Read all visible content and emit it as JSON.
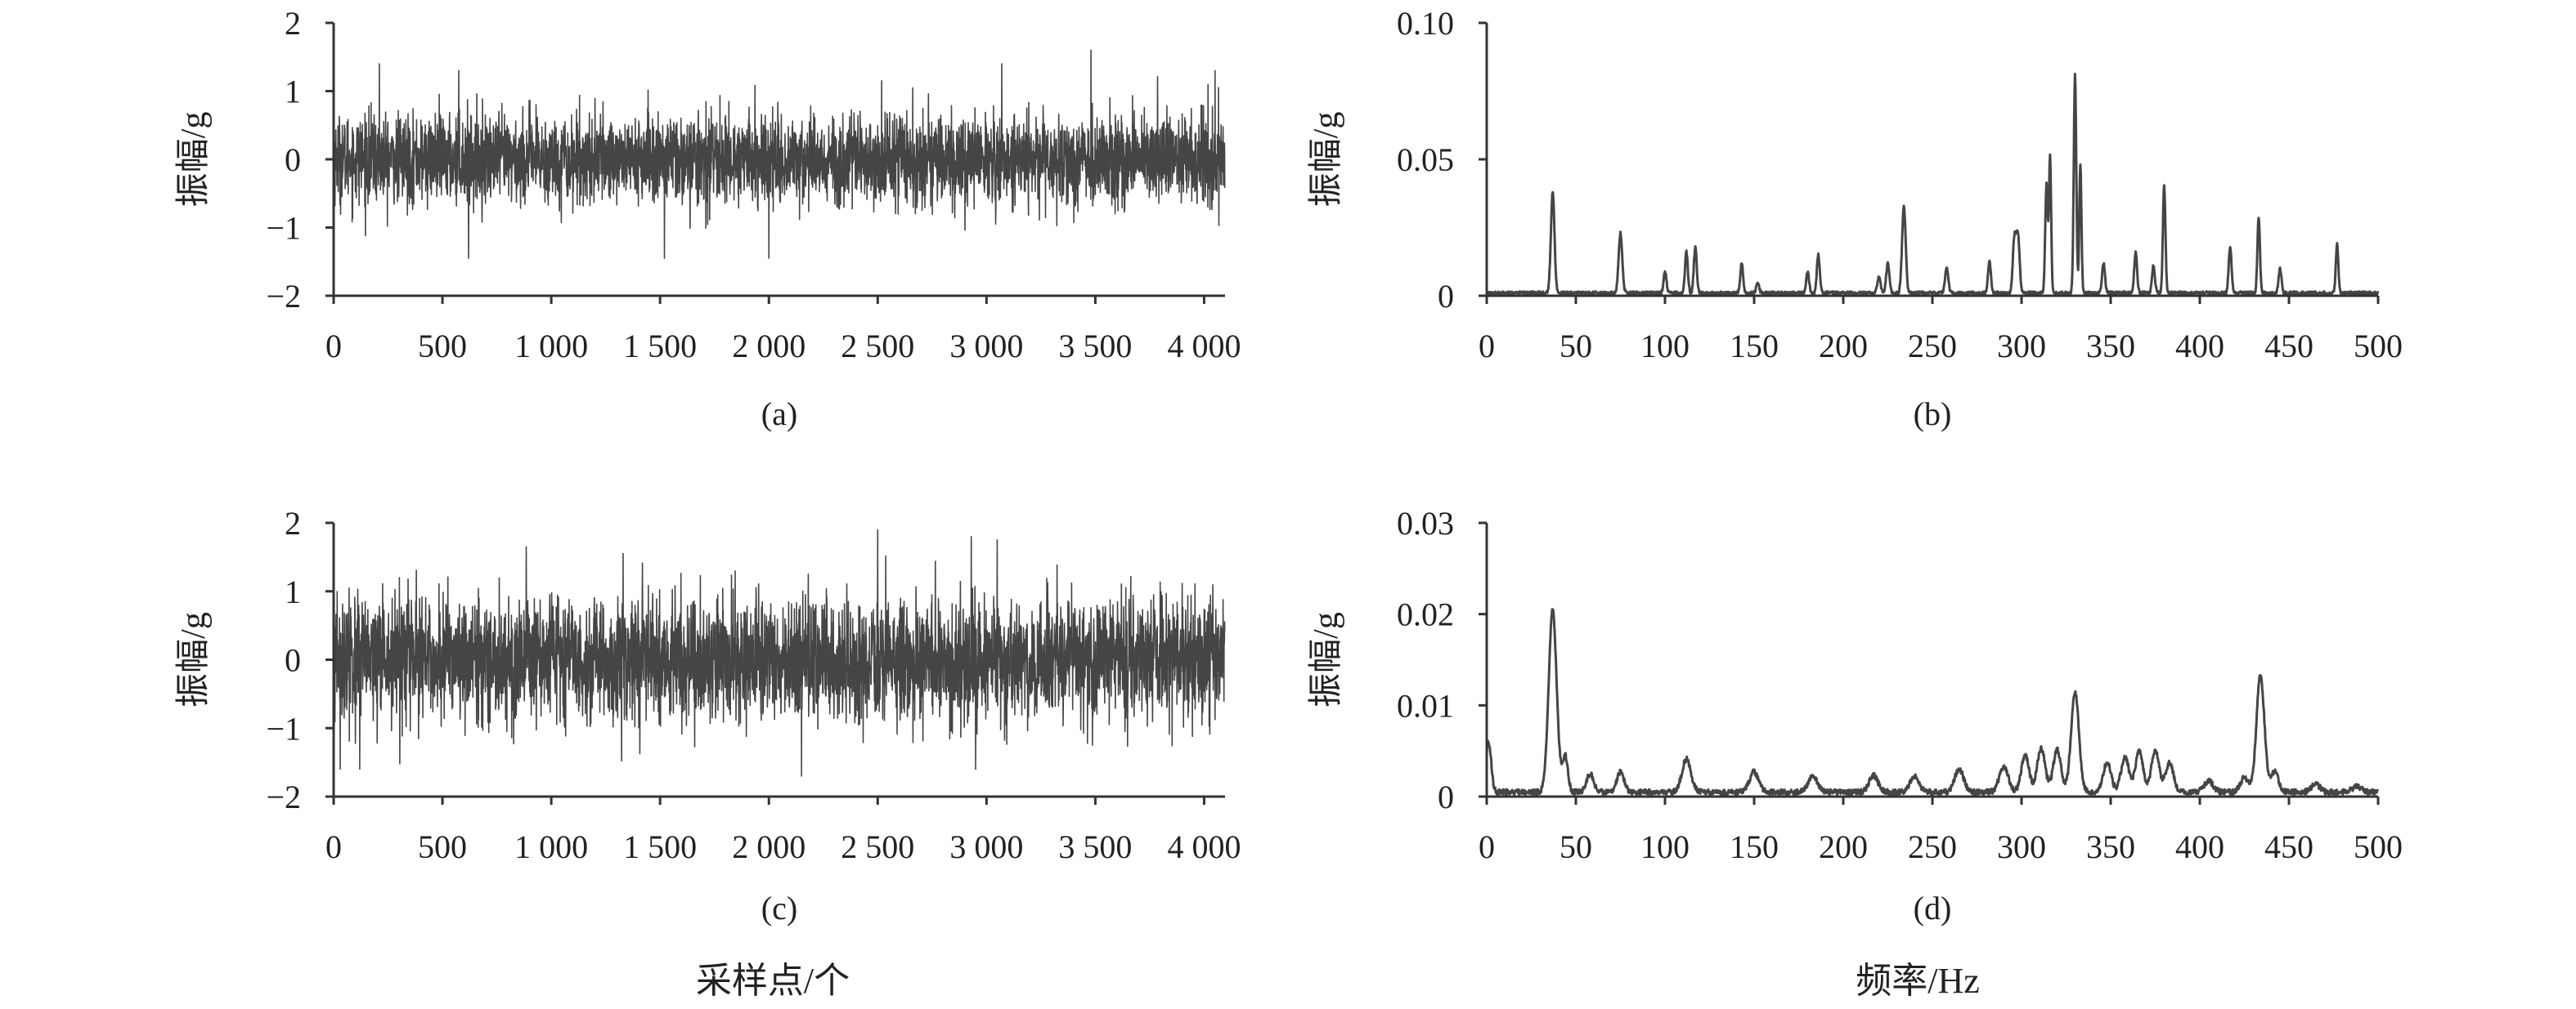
{
  "chart_data": [
    {
      "id": "a",
      "type": "line",
      "caption": "(a)",
      "ylabel": "振幅/g",
      "xlabel": "",
      "xlim": [
        0,
        4096
      ],
      "ylim": [
        -2,
        2
      ],
      "xticks": [
        0,
        500,
        1000,
        1500,
        2000,
        2500,
        3000,
        3500,
        4000
      ],
      "xtick_labels": [
        "0",
        "500",
        "1 000",
        "1 500",
        "2 000",
        "2 500",
        "3 000",
        "3 500",
        "4 000"
      ],
      "yticks": [
        -2,
        -1,
        0,
        1,
        2
      ],
      "ytick_labels": [
        "−2",
        "−1",
        "0",
        "1",
        "2"
      ],
      "signal": {
        "kind": "noise",
        "n": 4096,
        "sigma": 0.32,
        "clip": 1.6
      },
      "annotated_peaks": [
        {
          "x": 210,
          "y": 1.4
        },
        {
          "x": 575,
          "y": 1.3
        },
        {
          "x": 620,
          "y": -1.45
        },
        {
          "x": 1520,
          "y": -1.45
        },
        {
          "x": 2000,
          "y": -1.45
        },
        {
          "x": 3070,
          "y": 1.4
        },
        {
          "x": 3480,
          "y": 1.6
        },
        {
          "x": 4050,
          "y": 1.3
        }
      ]
    },
    {
      "id": "b",
      "type": "line",
      "caption": "(b)",
      "ylabel": "振幅/g",
      "xlabel": "",
      "xlim": [
        0,
        500
      ],
      "ylim": [
        0,
        0.1
      ],
      "xticks": [
        0,
        50,
        100,
        150,
        200,
        250,
        300,
        350,
        400,
        450,
        500
      ],
      "xtick_labels": [
        "0",
        "50",
        "100",
        "150",
        "200",
        "250",
        "300",
        "350",
        "400",
        "450",
        "500"
      ],
      "yticks": [
        0,
        0.05,
        0.1
      ],
      "ytick_labels": [
        "0",
        "0.05",
        "0.10"
      ],
      "baseline": 0.001,
      "peaks": [
        {
          "x": 37,
          "y": 0.037,
          "w": 1.0
        },
        {
          "x": 75,
          "y": 0.022,
          "w": 1.0
        },
        {
          "x": 100,
          "y": 0.008,
          "w": 0.8
        },
        {
          "x": 112,
          "y": 0.015,
          "w": 0.8
        },
        {
          "x": 117,
          "y": 0.017,
          "w": 0.8
        },
        {
          "x": 143,
          "y": 0.011,
          "w": 0.8
        },
        {
          "x": 152,
          "y": 0.004,
          "w": 0.8
        },
        {
          "x": 180,
          "y": 0.008,
          "w": 0.8
        },
        {
          "x": 186,
          "y": 0.014,
          "w": 0.8
        },
        {
          "x": 220,
          "y": 0.006,
          "w": 0.9
        },
        {
          "x": 225,
          "y": 0.011,
          "w": 0.9
        },
        {
          "x": 234,
          "y": 0.032,
          "w": 1.0
        },
        {
          "x": 258,
          "y": 0.009,
          "w": 0.9
        },
        {
          "x": 282,
          "y": 0.012,
          "w": 0.8
        },
        {
          "x": 296,
          "y": 0.02,
          "w": 0.9
        },
        {
          "x": 298,
          "y": 0.021,
          "w": 0.9
        },
        {
          "x": 314,
          "y": 0.04,
          "w": 0.7
        },
        {
          "x": 316,
          "y": 0.05,
          "w": 0.6
        },
        {
          "x": 330,
          "y": 0.08,
          "w": 0.7
        },
        {
          "x": 333,
          "y": 0.047,
          "w": 0.6
        },
        {
          "x": 346,
          "y": 0.011,
          "w": 0.8
        },
        {
          "x": 364,
          "y": 0.015,
          "w": 0.8
        },
        {
          "x": 374,
          "y": 0.01,
          "w": 0.8
        },
        {
          "x": 380,
          "y": 0.04,
          "w": 0.7
        },
        {
          "x": 417,
          "y": 0.017,
          "w": 0.8
        },
        {
          "x": 433,
          "y": 0.028,
          "w": 0.7
        },
        {
          "x": 445,
          "y": 0.009,
          "w": 0.8
        },
        {
          "x": 477,
          "y": 0.018,
          "w": 0.7
        }
      ]
    },
    {
      "id": "c",
      "type": "line",
      "caption": "(c)",
      "ylabel": "振幅/g",
      "xlabel": "",
      "xlim": [
        0,
        4096
      ],
      "ylim": [
        -2,
        2
      ],
      "xticks": [
        0,
        500,
        1000,
        1500,
        2000,
        2500,
        3000,
        3500,
        4000
      ],
      "xtick_labels": [
        "0",
        "500",
        "1 000",
        "1 500",
        "2 000",
        "2 500",
        "3 000",
        "3 500",
        "4 000"
      ],
      "yticks": [
        -2,
        -1,
        0,
        1,
        2
      ],
      "ytick_labels": [
        "−2",
        "−1",
        "0",
        "1",
        "2"
      ],
      "signal": {
        "kind": "noise",
        "n": 4096,
        "sigma": 0.45,
        "clip": 1.8
      },
      "annotated_peaks": [
        {
          "x": 120,
          "y": -1.6
        },
        {
          "x": 885,
          "y": 1.65
        },
        {
          "x": 2150,
          "y": -1.7
        },
        {
          "x": 2500,
          "y": 1.9
        },
        {
          "x": 2930,
          "y": 1.8
        },
        {
          "x": 2950,
          "y": -1.6
        }
      ]
    },
    {
      "id": "d",
      "type": "line",
      "caption": "(d)",
      "ylabel": "振幅/g",
      "xlabel": "",
      "xlim": [
        0,
        500
      ],
      "ylim": [
        0,
        0.03
      ],
      "xticks": [
        0,
        50,
        100,
        150,
        200,
        250,
        300,
        350,
        400,
        450,
        500
      ],
      "xtick_labels": [
        "0",
        "50",
        "100",
        "150",
        "200",
        "250",
        "300",
        "350",
        "400",
        "450",
        "500"
      ],
      "yticks": [
        0,
        0.01,
        0.02,
        0.03
      ],
      "ytick_labels": [
        "0",
        "0.01",
        "0.02",
        "0.03"
      ],
      "baseline": 0.0005,
      "peaks": [
        {
          "x": 1,
          "y": 0.0055,
          "w": 1.5
        },
        {
          "x": 37,
          "y": 0.02,
          "w": 2.2
        },
        {
          "x": 44,
          "y": 0.004,
          "w": 1.5
        },
        {
          "x": 58,
          "y": 0.002,
          "w": 2
        },
        {
          "x": 75,
          "y": 0.0022,
          "w": 2
        },
        {
          "x": 112,
          "y": 0.0036,
          "w": 2.5
        },
        {
          "x": 150,
          "y": 0.0022,
          "w": 2.5
        },
        {
          "x": 183,
          "y": 0.0018,
          "w": 2.5
        },
        {
          "x": 217,
          "y": 0.0018,
          "w": 2.5
        },
        {
          "x": 240,
          "y": 0.0017,
          "w": 2.5
        },
        {
          "x": 265,
          "y": 0.0025,
          "w": 2.5
        },
        {
          "x": 290,
          "y": 0.0028,
          "w": 2.5
        },
        {
          "x": 302,
          "y": 0.004,
          "w": 2.2
        },
        {
          "x": 311,
          "y": 0.0048,
          "w": 2.2
        },
        {
          "x": 320,
          "y": 0.0046,
          "w": 2.2
        },
        {
          "x": 330,
          "y": 0.011,
          "w": 2.2
        },
        {
          "x": 348,
          "y": 0.0032,
          "w": 2.2
        },
        {
          "x": 358,
          "y": 0.0038,
          "w": 2.2
        },
        {
          "x": 366,
          "y": 0.0044,
          "w": 2.2
        },
        {
          "x": 375,
          "y": 0.0045,
          "w": 2.2
        },
        {
          "x": 383,
          "y": 0.0032,
          "w": 2.2
        },
        {
          "x": 405,
          "y": 0.0012,
          "w": 2.5
        },
        {
          "x": 425,
          "y": 0.0016,
          "w": 2.2
        },
        {
          "x": 434,
          "y": 0.0128,
          "w": 2.2
        },
        {
          "x": 442,
          "y": 0.0022,
          "w": 2
        },
        {
          "x": 465,
          "y": 0.0008,
          "w": 2.5
        },
        {
          "x": 488,
          "y": 0.0006,
          "w": 2.5
        }
      ]
    }
  ],
  "figure": {
    "xtitle_left": "采样点/个",
    "xtitle_right": "频率/Hz"
  }
}
